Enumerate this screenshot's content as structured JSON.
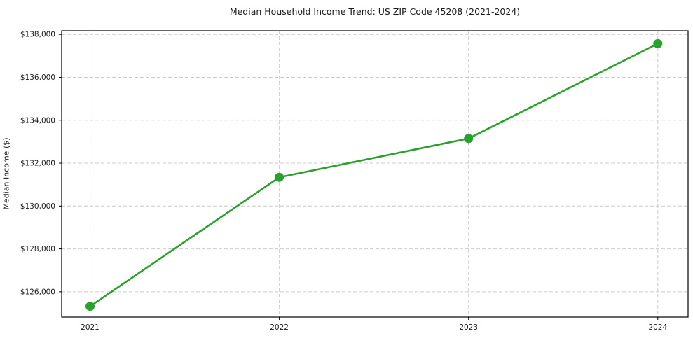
{
  "chart_data": {
    "type": "line",
    "title": "Median Household Income Trend: US ZIP Code 45208 (2021-2024)",
    "xlabel": "",
    "ylabel": "Median Income ($)",
    "x": [
      2021,
      2022,
      2023,
      2024
    ],
    "values": [
      125320,
      131340,
      133150,
      137570
    ],
    "series_name": "Median Household Income",
    "xlim": [
      2020.85,
      2024.16
    ],
    "ylim": [
      124820,
      138170
    ],
    "yticks": [
      {
        "value": 126000,
        "label": "$126,000"
      },
      {
        "value": 128000,
        "label": "$128,000"
      },
      {
        "value": 130000,
        "label": "$130,000"
      },
      {
        "value": 132000,
        "label": "$132,000"
      },
      {
        "value": 134000,
        "label": "$134,000"
      },
      {
        "value": 136000,
        "label": "$136,000"
      },
      {
        "value": 138000,
        "label": "$138,000"
      }
    ],
    "xticks": [
      {
        "value": 2021,
        "label": "2021"
      },
      {
        "value": 2022,
        "label": "2022"
      },
      {
        "value": 2023,
        "label": "2023"
      },
      {
        "value": 2024,
        "label": "2024"
      }
    ],
    "grid": true,
    "grid_style": "dashed",
    "legend": "none",
    "colors": {
      "line": "#2ca02c",
      "marker": "#2ca02c",
      "grid": "#cccccc",
      "axis": "#000000",
      "text": "#1a1a1a",
      "background": "#ffffff"
    }
  }
}
